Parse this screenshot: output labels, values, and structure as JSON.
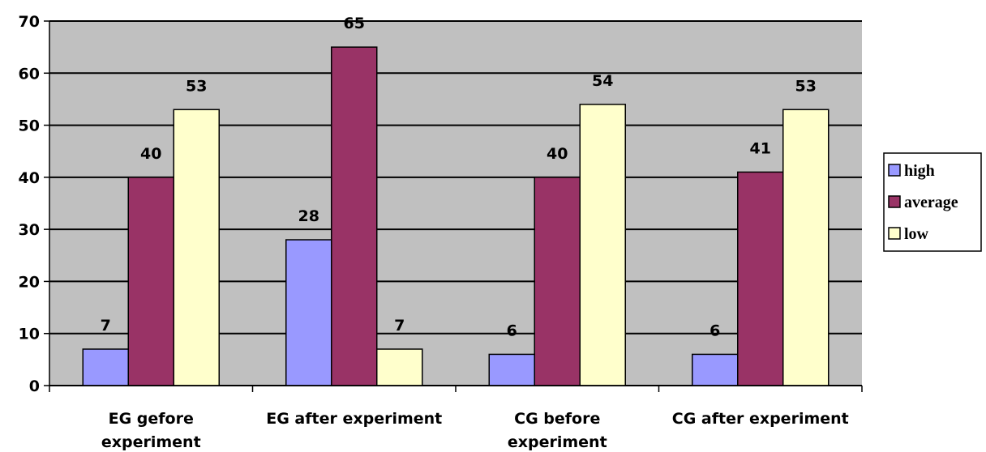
{
  "chart_data": {
    "type": "bar",
    "categories": [
      [
        "EG gefore",
        "experiment"
      ],
      [
        "EG after experiment"
      ],
      [
        "CG before",
        "experiment"
      ],
      [
        "CG after experiment"
      ]
    ],
    "series": [
      {
        "name": "high",
        "values": [
          7,
          28,
          6,
          6
        ],
        "color": "#9999ff"
      },
      {
        "name": "average",
        "values": [
          40,
          65,
          40,
          41
        ],
        "color": "#993366"
      },
      {
        "name": "low",
        "values": [
          53,
          7,
          54,
          53
        ],
        "color": "#ffffcc"
      }
    ],
    "ylim": [
      0,
      70
    ],
    "yticks": [
      0,
      10,
      20,
      30,
      40,
      50,
      60,
      70
    ],
    "grid": true,
    "plot_background": "#c0c0c0",
    "legend_position": "right",
    "title": "",
    "xlabel": "",
    "ylabel": ""
  }
}
